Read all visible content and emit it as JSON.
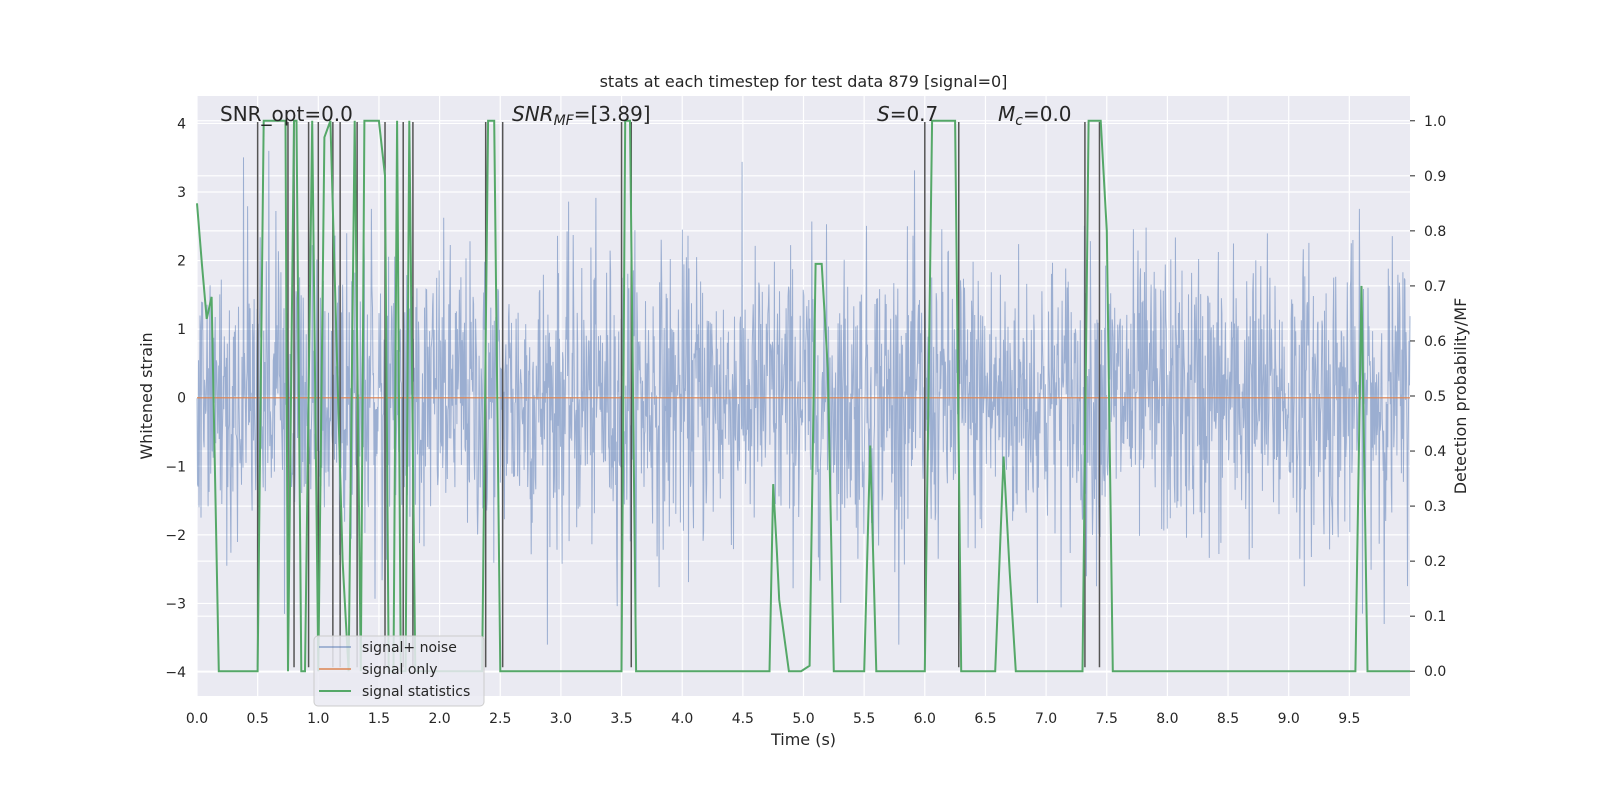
{
  "chart_data": {
    "type": "line",
    "title": "stats at each timestep for test data 879 [signal=0]",
    "xlabel": "Time (s)",
    "ylabel": "Whitened strain",
    "y2label": "Detection probability/MF",
    "xlim": [
      0,
      10
    ],
    "ylim": [
      -4.35,
      4.4
    ],
    "y2lim": [
      -0.045,
      1.045
    ],
    "grid": true,
    "legend_placement": "lower-left",
    "x_ticks": [
      "0.0",
      "0.5",
      "1.0",
      "1.5",
      "2.0",
      "2.5",
      "3.0",
      "3.5",
      "4.0",
      "4.5",
      "5.0",
      "5.5",
      "6.0",
      "6.5",
      "7.0",
      "7.5",
      "8.0",
      "8.5",
      "9.0",
      "9.5"
    ],
    "y_ticks": [
      "−4",
      "−3",
      "−2",
      "−1",
      "0",
      "1",
      "2",
      "3",
      "4"
    ],
    "y2_ticks": [
      "0.0",
      "0.1",
      "0.2",
      "0.3",
      "0.4",
      "0.5",
      "0.6",
      "0.7",
      "0.8",
      "0.9",
      "1.0"
    ],
    "annotations": {
      "snr_opt": "SNR_opt=0.0",
      "snr_mf_prefix": "SNR",
      "snr_mf_sub": "MF",
      "snr_mf_value": "=[3.89]",
      "s_symbol": "S",
      "s_value": "=0.7",
      "mc_symbol": "M",
      "mc_sub": "c",
      "mc_value": "=0.0"
    },
    "series": [
      {
        "name": "signal+ noise",
        "color": "#4c72b0",
        "axis": "left",
        "description": "whitened noise samples, roughly in [-3.5, 3.5]"
      },
      {
        "name": "signal only",
        "color": "#dd8452",
        "axis": "left",
        "values_constant": 0.0
      },
      {
        "name": "signal statistics",
        "color": "#55a868",
        "axis": "right",
        "x": [
          0.0,
          0.04,
          0.08,
          0.12,
          0.18,
          0.5,
          0.55,
          0.73,
          0.75,
          0.8,
          0.82,
          0.86,
          0.89,
          0.95,
          1.0,
          1.05,
          1.1,
          1.15,
          1.2,
          1.25,
          1.3,
          1.35,
          1.38,
          1.5,
          1.55,
          1.58,
          1.62,
          1.65,
          1.68,
          1.72,
          1.75,
          1.8,
          1.85,
          2.35,
          2.4,
          2.45,
          2.5,
          2.58,
          3.5,
          3.53,
          3.57,
          3.62,
          3.7,
          4.72,
          4.75,
          4.78,
          4.8,
          4.88,
          4.98,
          5.05,
          5.1,
          5.15,
          5.2,
          5.25,
          5.5,
          5.55,
          5.6,
          5.65,
          6.0,
          6.06,
          6.25,
          6.3,
          6.58,
          6.65,
          6.7,
          6.75,
          7.3,
          7.35,
          7.4,
          7.45,
          7.5,
          7.55,
          9.55,
          9.6,
          9.65,
          9.7,
          10.0
        ],
        "values": [
          0.85,
          0.74,
          0.64,
          0.68,
          0.0,
          0.0,
          1.0,
          1.0,
          0.0,
          1.0,
          1.0,
          0.0,
          0.0,
          1.0,
          0.0,
          0.97,
          1.0,
          0.6,
          0.2,
          0.0,
          1.0,
          0.0,
          1.0,
          1.0,
          0.9,
          0.0,
          0.0,
          1.0,
          0.0,
          0.0,
          1.0,
          0.0,
          0.0,
          0.0,
          1.0,
          1.0,
          0.0,
          0.0,
          0.0,
          1.0,
          1.0,
          0.0,
          0.0,
          0.0,
          0.34,
          0.22,
          0.13,
          0.0,
          0.0,
          0.01,
          0.74,
          0.74,
          0.55,
          0.0,
          0.0,
          0.41,
          0.0,
          0.0,
          0.0,
          1.0,
          1.0,
          0.0,
          0.0,
          0.39,
          0.18,
          0.0,
          0.0,
          1.0,
          1.0,
          1.0,
          0.8,
          0.0,
          0.0,
          0.7,
          0.0,
          0.0,
          0.0
        ]
      }
    ],
    "vertical_markers_x": [
      0.5,
      0.75,
      0.8,
      0.92,
      1.0,
      1.12,
      1.18,
      1.32,
      1.55,
      1.7,
      1.78,
      2.38,
      2.52,
      3.5,
      3.58,
      6.0,
      6.28,
      7.32,
      7.44
    ]
  }
}
